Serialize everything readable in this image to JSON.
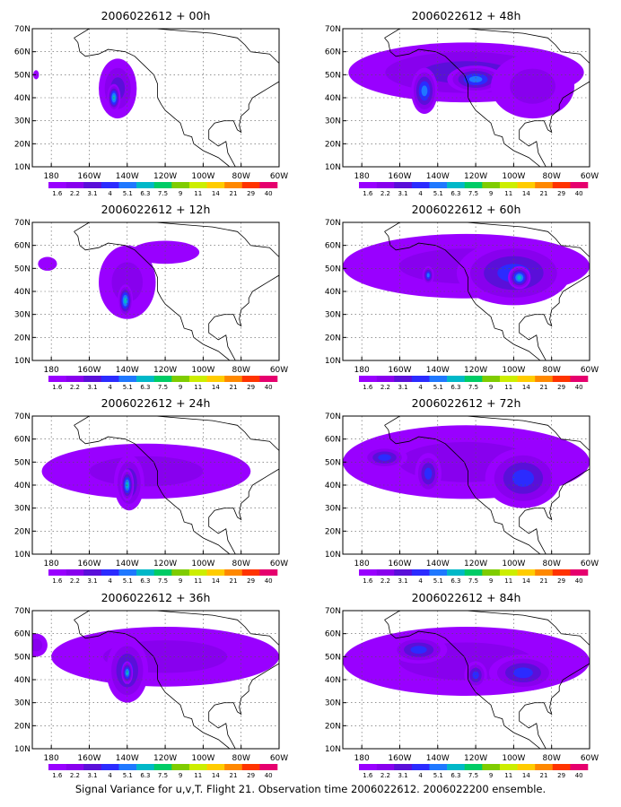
{
  "footer": "Signal Variance for u,v,T. Flight 21. Observation time 2006022612. 2006022200 ensemble.",
  "chart_data": {
    "type": "heatmap",
    "lat_ticks": [
      "10N",
      "20N",
      "30N",
      "40N",
      "50N",
      "60N",
      "70N"
    ],
    "lon_ticks": [
      "180",
      "160W",
      "140W",
      "120W",
      "100W",
      "80W",
      "60W"
    ],
    "lon_range": [
      -190,
      -60
    ],
    "lat_range": [
      10,
      70
    ],
    "grid": true,
    "levels": [
      "1.6",
      "2.2",
      "3.1",
      "4",
      "5.1",
      "6.3",
      "7.5",
      "9",
      "11",
      "14",
      "21",
      "29",
      "40"
    ],
    "colors": [
      "#9900ff",
      "#8800ee",
      "#5a0fd9",
      "#2b2bff",
      "#1f78ff",
      "#00b8c8",
      "#00cc66",
      "#7fcc00",
      "#ccee00",
      "#ffcc00",
      "#ff8800",
      "#ff3300",
      "#e6006e"
    ],
    "panels": [
      {
        "title": "2006022612 + 00h",
        "blobs": [
          {
            "lon": -145,
            "lat": 44,
            "rx": 10,
            "ry": 13,
            "level": 2
          },
          {
            "lon": -188,
            "lat": 50,
            "rx": 1.5,
            "ry": 2,
            "level": 0
          },
          {
            "lon": -147,
            "lat": 40,
            "rx": 3.5,
            "ry": 6,
            "level": 5
          }
        ]
      },
      {
        "title": "2006022612 + 48h",
        "blobs": [
          {
            "lon": -125,
            "lat": 51,
            "rx": 62,
            "ry": 13,
            "level": 2
          },
          {
            "lon": -147,
            "lat": 43,
            "rx": 7,
            "ry": 10,
            "level": 4
          },
          {
            "lon": -120,
            "lat": 48,
            "rx": 15,
            "ry": 6,
            "level": 4
          },
          {
            "lon": -90,
            "lat": 45,
            "rx": 22,
            "ry": 14,
            "level": 1
          }
        ]
      },
      {
        "title": "2006022612 + 12h",
        "blobs": [
          {
            "lon": -140,
            "lat": 44,
            "rx": 15,
            "ry": 16,
            "level": 1
          },
          {
            "lon": -120,
            "lat": 57,
            "rx": 18,
            "ry": 5,
            "level": 0
          },
          {
            "lon": -182,
            "lat": 52,
            "rx": 5,
            "ry": 3,
            "level": 0
          },
          {
            "lon": -141,
            "lat": 36,
            "rx": 4,
            "ry": 7,
            "level": 5
          }
        ]
      },
      {
        "title": "2006022612 + 60h",
        "blobs": [
          {
            "lon": -125,
            "lat": 51,
            "rx": 65,
            "ry": 14,
            "level": 1
          },
          {
            "lon": -100,
            "lat": 48,
            "rx": 30,
            "ry": 14,
            "level": 3
          },
          {
            "lon": -145,
            "lat": 47,
            "rx": 3,
            "ry": 4,
            "level": 4
          },
          {
            "lon": -97,
            "lat": 46,
            "rx": 6,
            "ry": 5,
            "level": 5
          }
        ]
      },
      {
        "title": "2006022612 + 24h",
        "blobs": [
          {
            "lon": -130,
            "lat": 46,
            "rx": 55,
            "ry": 12,
            "level": 1
          },
          {
            "lon": -139,
            "lat": 41,
            "rx": 8,
            "ry": 12,
            "level": 3
          },
          {
            "lon": -140,
            "lat": 40,
            "rx": 3.5,
            "ry": 7,
            "level": 5
          }
        ]
      },
      {
        "title": "2006022612 + 72h",
        "blobs": [
          {
            "lon": -125,
            "lat": 50,
            "rx": 65,
            "ry": 16,
            "level": 1
          },
          {
            "lon": -95,
            "lat": 43,
            "rx": 20,
            "ry": 13,
            "level": 3
          },
          {
            "lon": -145,
            "lat": 45,
            "rx": 7,
            "ry": 9,
            "level": 3
          },
          {
            "lon": -168,
            "lat": 52,
            "rx": 12,
            "ry": 5,
            "level": 3
          }
        ]
      },
      {
        "title": "2006022612 + 36h",
        "blobs": [
          {
            "lon": -120,
            "lat": 50,
            "rx": 60,
            "ry": 13,
            "level": 1
          },
          {
            "lon": -140,
            "lat": 44,
            "rx": 11,
            "ry": 14,
            "level": 3
          },
          {
            "lon": -140,
            "lat": 43,
            "rx": 3,
            "ry": 5,
            "level": 5
          },
          {
            "lon": -188,
            "lat": 55,
            "rx": 6,
            "ry": 5,
            "level": 1
          }
        ]
      },
      {
        "title": "2006022612 + 84h",
        "blobs": [
          {
            "lon": -125,
            "lat": 48,
            "rx": 65,
            "ry": 15,
            "level": 1
          },
          {
            "lon": -150,
            "lat": 53,
            "rx": 15,
            "ry": 6,
            "level": 3
          },
          {
            "lon": -95,
            "lat": 43,
            "rx": 18,
            "ry": 8,
            "level": 3
          },
          {
            "lon": -120,
            "lat": 42,
            "rx": 6,
            "ry": 6,
            "level": 3
          }
        ]
      }
    ]
  }
}
